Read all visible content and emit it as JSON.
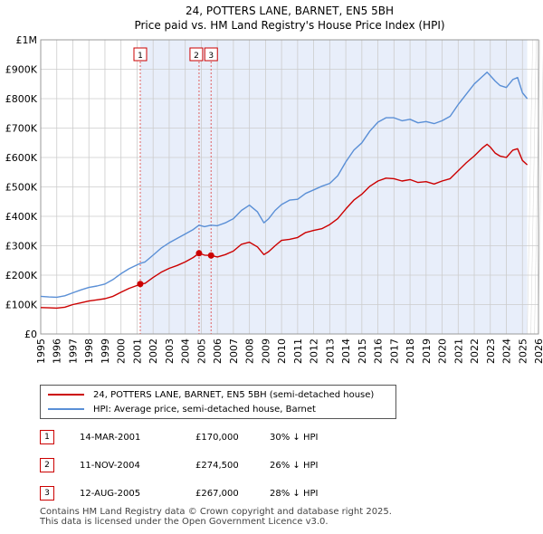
{
  "title_line1": "24, POTTERS LANE, BARNET, EN5 5BH",
  "title_line2": "Price paid vs. HM Land Registry's House Price Index (HPI)",
  "colors": {
    "red": "#cc0000",
    "blue": "#5a8fd6",
    "shade": "#e8eefa",
    "grid": "#cccccc",
    "vline": "#e06060"
  },
  "chart_data": {
    "type": "line",
    "xlim": [
      1995,
      2026
    ],
    "ylim": [
      0,
      1000000
    ],
    "ytick_values": [
      0,
      100000,
      200000,
      300000,
      400000,
      500000,
      600000,
      700000,
      800000,
      900000,
      1000000
    ],
    "ytick_labels": [
      "£0",
      "£100K",
      "£200K",
      "£300K",
      "£400K",
      "£500K",
      "£600K",
      "£700K",
      "£800K",
      "£900K",
      "£1M"
    ],
    "xtick_labels": [
      "1995",
      "1996",
      "1997",
      "1998",
      "1999",
      "2000",
      "2001",
      "2002",
      "2003",
      "2004",
      "2005",
      "2006",
      "2007",
      "2008",
      "2009",
      "2010",
      "2011",
      "2012",
      "2013",
      "2014",
      "2015",
      "2016",
      "2017",
      "2018",
      "2019",
      "2020",
      "2021",
      "2022",
      "2023",
      "2024",
      "2025",
      "2026"
    ],
    "shaded_ranges": [
      [
        2001.2,
        2025.3
      ]
    ],
    "series": [
      {
        "name": "24, POTTERS LANE, BARNET, EN5 5BH (semi-detached house)",
        "color": "#cc0000",
        "points": [
          [
            1995.0,
            90000
          ],
          [
            1995.5,
            89000
          ],
          [
            1996.0,
            88000
          ],
          [
            1996.5,
            91000
          ],
          [
            1997.0,
            100000
          ],
          [
            1997.5,
            106000
          ],
          [
            1998.0,
            112000
          ],
          [
            1998.5,
            116000
          ],
          [
            1999.0,
            120000
          ],
          [
            1999.5,
            128000
          ],
          [
            2000.0,
            142000
          ],
          [
            2000.5,
            155000
          ],
          [
            2001.0,
            165000
          ],
          [
            2001.2,
            170000
          ],
          [
            2001.5,
            172000
          ],
          [
            2002.0,
            192000
          ],
          [
            2002.5,
            210000
          ],
          [
            2003.0,
            223000
          ],
          [
            2003.5,
            233000
          ],
          [
            2004.0,
            245000
          ],
          [
            2004.5,
            260000
          ],
          [
            2004.86,
            274500
          ],
          [
            2005.2,
            268000
          ],
          [
            2005.6,
            267000
          ],
          [
            2006.0,
            262000
          ],
          [
            2006.5,
            270000
          ],
          [
            2007.0,
            282000
          ],
          [
            2007.5,
            305000
          ],
          [
            2008.0,
            312000
          ],
          [
            2008.5,
            296000
          ],
          [
            2008.9,
            270000
          ],
          [
            2009.2,
            280000
          ],
          [
            2009.6,
            300000
          ],
          [
            2010.0,
            318000
          ],
          [
            2010.5,
            322000
          ],
          [
            2011.0,
            328000
          ],
          [
            2011.5,
            345000
          ],
          [
            2012.0,
            352000
          ],
          [
            2012.5,
            358000
          ],
          [
            2013.0,
            372000
          ],
          [
            2013.5,
            392000
          ],
          [
            2014.0,
            425000
          ],
          [
            2014.5,
            455000
          ],
          [
            2015.0,
            475000
          ],
          [
            2015.5,
            502000
          ],
          [
            2016.0,
            520000
          ],
          [
            2016.5,
            530000
          ],
          [
            2017.0,
            528000
          ],
          [
            2017.5,
            520000
          ],
          [
            2018.0,
            525000
          ],
          [
            2018.5,
            515000
          ],
          [
            2019.0,
            518000
          ],
          [
            2019.5,
            510000
          ],
          [
            2020.0,
            520000
          ],
          [
            2020.5,
            528000
          ],
          [
            2021.0,
            555000
          ],
          [
            2021.5,
            582000
          ],
          [
            2022.0,
            605000
          ],
          [
            2022.5,
            632000
          ],
          [
            2022.8,
            645000
          ],
          [
            2023.0,
            635000
          ],
          [
            2023.3,
            615000
          ],
          [
            2023.6,
            605000
          ],
          [
            2024.0,
            600000
          ],
          [
            2024.4,
            625000
          ],
          [
            2024.7,
            630000
          ],
          [
            2025.0,
            590000
          ],
          [
            2025.3,
            575000
          ]
        ],
        "markers": [
          [
            2001.2,
            170000,
            "1"
          ],
          [
            2004.86,
            274500,
            "2"
          ],
          [
            2005.61,
            267000,
            "3"
          ]
        ]
      },
      {
        "name": "HPI: Average price, semi-detached house, Barnet",
        "color": "#5a8fd6",
        "points": [
          [
            1995.0,
            128000
          ],
          [
            1995.5,
            126000
          ],
          [
            1996.0,
            125000
          ],
          [
            1996.5,
            130000
          ],
          [
            1997.0,
            140000
          ],
          [
            1997.5,
            150000
          ],
          [
            1998.0,
            158000
          ],
          [
            1998.5,
            163000
          ],
          [
            1999.0,
            170000
          ],
          [
            1999.5,
            185000
          ],
          [
            2000.0,
            205000
          ],
          [
            2000.5,
            222000
          ],
          [
            2001.0,
            235000
          ],
          [
            2001.2,
            240000
          ],
          [
            2001.5,
            245000
          ],
          [
            2002.0,
            268000
          ],
          [
            2002.5,
            292000
          ],
          [
            2003.0,
            310000
          ],
          [
            2003.5,
            325000
          ],
          [
            2004.0,
            340000
          ],
          [
            2004.5,
            355000
          ],
          [
            2004.86,
            370000
          ],
          [
            2005.2,
            365000
          ],
          [
            2005.6,
            370000
          ],
          [
            2006.0,
            368000
          ],
          [
            2006.5,
            378000
          ],
          [
            2007.0,
            392000
          ],
          [
            2007.5,
            420000
          ],
          [
            2008.0,
            438000
          ],
          [
            2008.5,
            415000
          ],
          [
            2008.9,
            378000
          ],
          [
            2009.2,
            392000
          ],
          [
            2009.6,
            420000
          ],
          [
            2010.0,
            440000
          ],
          [
            2010.5,
            455000
          ],
          [
            2011.0,
            458000
          ],
          [
            2011.5,
            478000
          ],
          [
            2012.0,
            490000
          ],
          [
            2012.5,
            502000
          ],
          [
            2013.0,
            512000
          ],
          [
            2013.5,
            538000
          ],
          [
            2014.0,
            585000
          ],
          [
            2014.5,
            625000
          ],
          [
            2015.0,
            650000
          ],
          [
            2015.5,
            690000
          ],
          [
            2016.0,
            720000
          ],
          [
            2016.5,
            735000
          ],
          [
            2017.0,
            735000
          ],
          [
            2017.5,
            725000
          ],
          [
            2018.0,
            730000
          ],
          [
            2018.5,
            718000
          ],
          [
            2019.0,
            722000
          ],
          [
            2019.5,
            715000
          ],
          [
            2020.0,
            725000
          ],
          [
            2020.5,
            740000
          ],
          [
            2021.0,
            780000
          ],
          [
            2021.5,
            815000
          ],
          [
            2022.0,
            850000
          ],
          [
            2022.5,
            875000
          ],
          [
            2022.8,
            890000
          ],
          [
            2023.0,
            878000
          ],
          [
            2023.3,
            860000
          ],
          [
            2023.6,
            845000
          ],
          [
            2024.0,
            838000
          ],
          [
            2024.4,
            865000
          ],
          [
            2024.7,
            872000
          ],
          [
            2025.0,
            820000
          ],
          [
            2025.3,
            800000
          ]
        ]
      }
    ]
  },
  "legend": {
    "property": "24, POTTERS LANE, BARNET, EN5 5BH (semi-detached house)",
    "hpi": "HPI: Average price, semi-detached house, Barnet"
  },
  "transactions": [
    {
      "num": "1",
      "date": "14-MAR-2001",
      "price": "£170,000",
      "hpi": "30% ↓ HPI"
    },
    {
      "num": "2",
      "date": "11-NOV-2004",
      "price": "£274,500",
      "hpi": "26% ↓ HPI"
    },
    {
      "num": "3",
      "date": "12-AUG-2005",
      "price": "£267,000",
      "hpi": "28% ↓ HPI"
    }
  ],
  "footer": {
    "line1": "Contains HM Land Registry data © Crown copyright and database right 2025.",
    "line2": "This data is licensed under the Open Government Licence v3.0."
  }
}
